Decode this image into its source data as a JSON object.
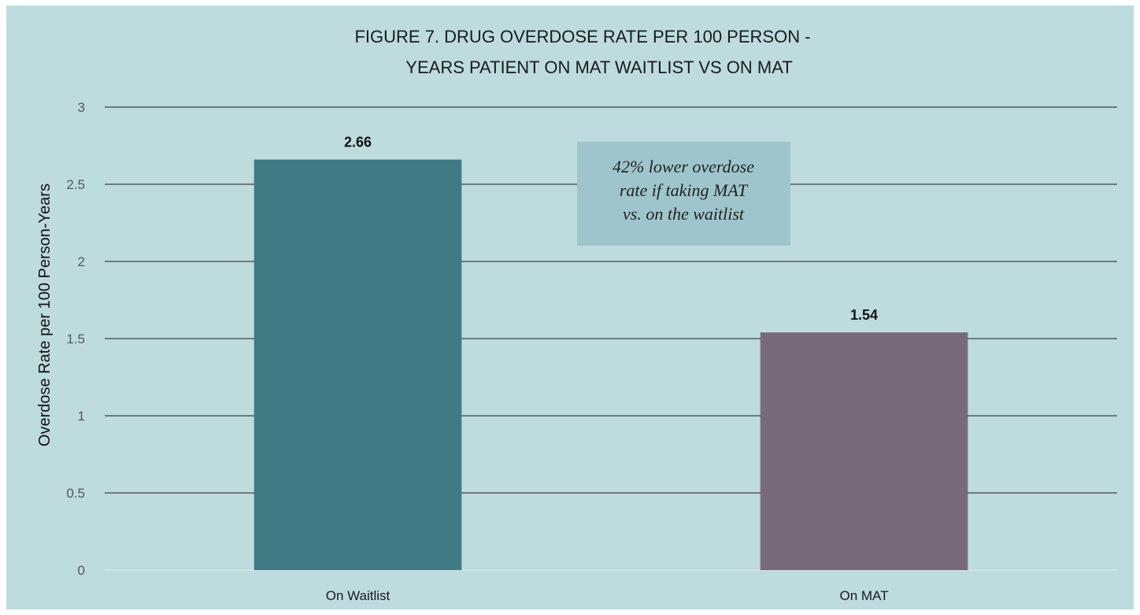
{
  "chart_data": {
    "type": "bar",
    "title_lines": [
      "FIGURE  7. DRUG OVERDOSE RATE PER 100 PERSON -",
      "YEARS PATIENT ON MAT WAITLIST VS ON MAT"
    ],
    "categories": [
      "On Waitlist",
      "On MAT"
    ],
    "values": [
      2.66,
      1.54
    ],
    "data_labels": [
      "2.66",
      "1.54"
    ],
    "bar_colors": [
      "#407a84",
      "#786a7b"
    ],
    "ylabel": "Overdose Rate per 100 Person-Years",
    "xlabel": "",
    "ylim": [
      0,
      3
    ],
    "yticks": [
      0,
      0.5,
      1,
      1.5,
      2,
      2.5,
      3
    ],
    "ytick_labels": [
      "0",
      "0.5",
      "1",
      "1.5",
      "2",
      "2.5",
      "3"
    ],
    "grid": true,
    "background_color": "#bedbde",
    "annotation": {
      "lines": [
        "42% lower overdose",
        "rate if taking MAT",
        "vs. on the waitlist"
      ],
      "background_color": "#9ec5cc"
    }
  }
}
